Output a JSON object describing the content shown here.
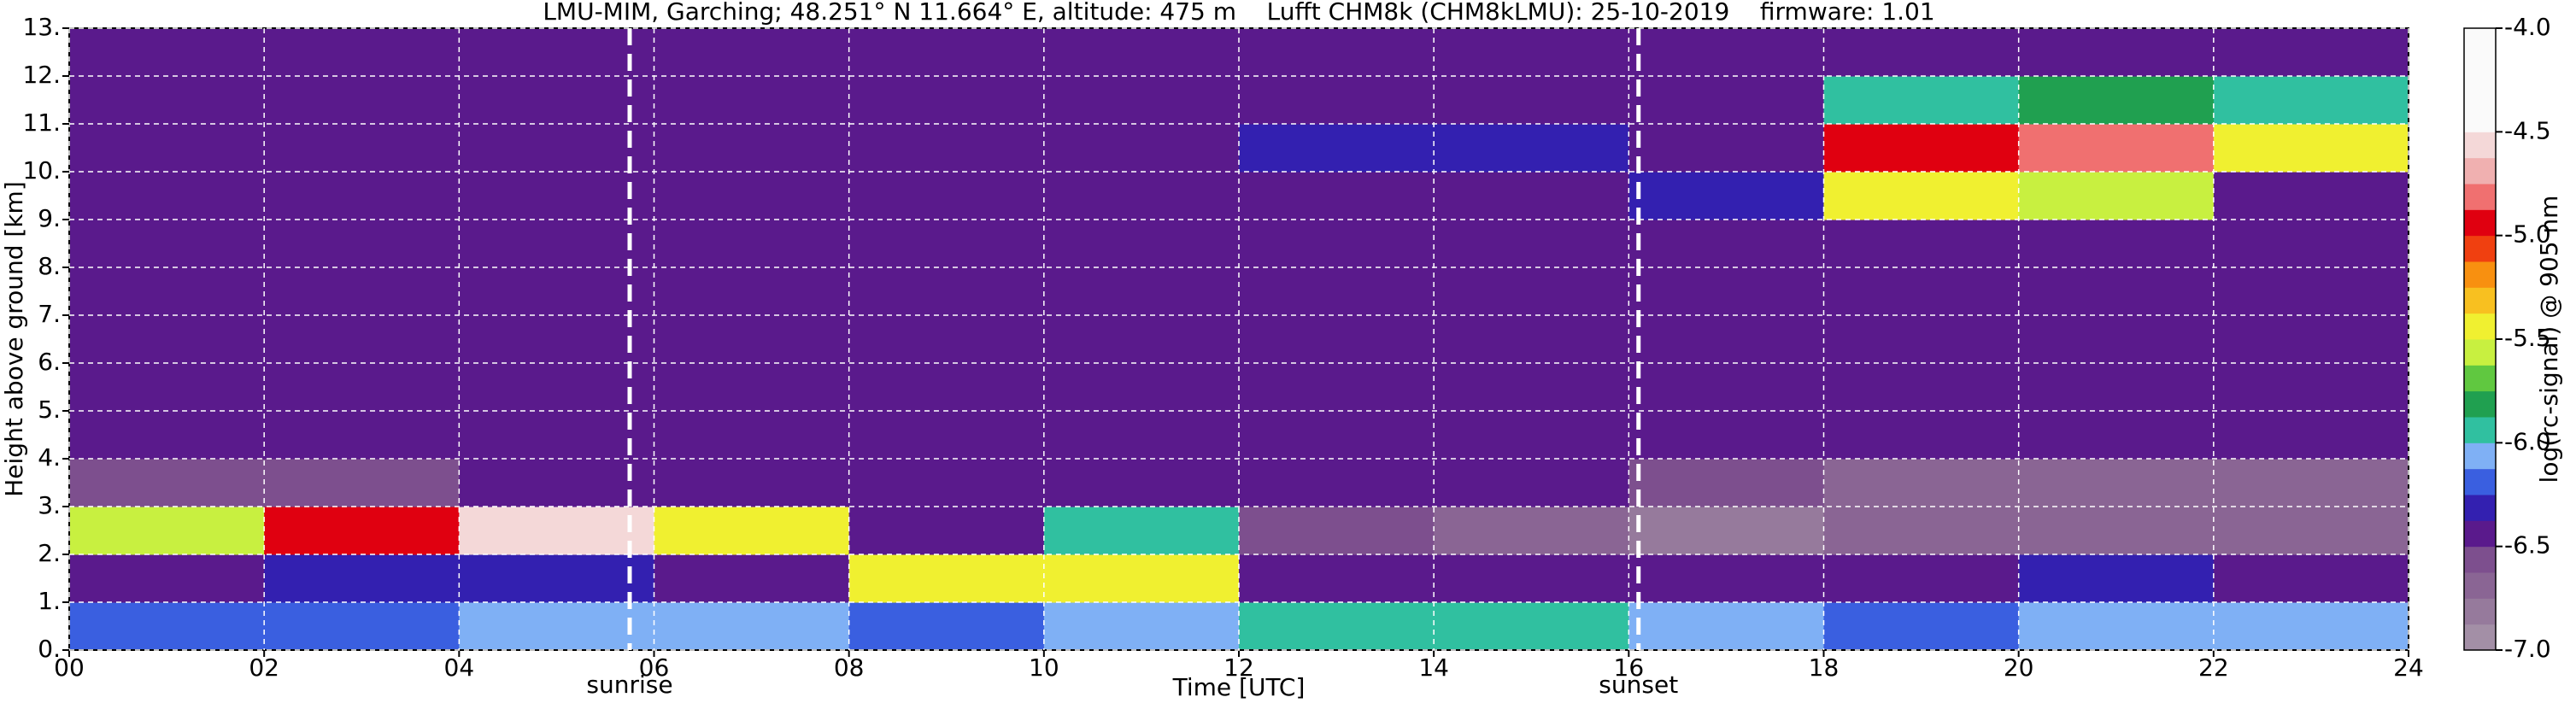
{
  "chart_data": {
    "type": "heatmap",
    "title": "LMU-MIM, Garching; 48.251° N 11.664° E, altitude: 475 m    Lufft CHM8k (CHM8kLMU): 25-10-2019    firmware: 1.01",
    "x_label": "Time [UTC]",
    "y_label": "Height above ground [km]",
    "colorbar_label": "log(rc-signal) @ 905 nm",
    "x_edges": [
      0,
      2,
      4,
      6,
      8,
      10,
      12,
      14,
      16,
      18,
      20,
      22,
      24
    ],
    "y_edges": [
      0,
      1,
      2,
      3,
      4,
      5,
      6,
      7,
      8,
      9,
      10,
      11,
      12,
      13
    ],
    "z": [
      [
        -6.2,
        -6.2,
        -6.1,
        -6.1,
        -6.2,
        -6.1,
        -6.0,
        -6.0,
        -6.1,
        -6.2,
        -6.1,
        -6.1
      ],
      [
        -6.5,
        -6.3,
        -6.3,
        -6.4,
        -5.4,
        -5.5,
        -6.4,
        -6.5,
        -6.4,
        -6.5,
        -6.3,
        -6.4
      ],
      [
        -5.6,
        -5.0,
        -4.6,
        -5.4,
        -6.5,
        -5.9,
        -6.6,
        -6.7,
        -6.8,
        -6.7,
        -6.7,
        -6.7
      ],
      [
        -6.6,
        -6.6,
        -6.5,
        -6.4,
        -6.5,
        -6.5,
        -6.5,
        -6.5,
        -6.6,
        -6.7,
        -6.7,
        -6.7
      ],
      [
        -6.5,
        -6.5,
        -6.5,
        -6.5,
        -6.5,
        -6.5,
        -6.5,
        -6.5,
        -6.5,
        -6.5,
        -6.5,
        -6.5
      ],
      [
        -6.5,
        -6.5,
        -6.5,
        -6.5,
        -6.5,
        -6.5,
        -6.5,
        -6.5,
        -6.5,
        -6.5,
        -6.5,
        -6.5
      ],
      [
        -6.5,
        -6.5,
        -6.5,
        -6.5,
        -6.5,
        -6.5,
        -6.5,
        -6.5,
        -6.5,
        -6.5,
        -6.5,
        -6.5
      ],
      [
        -6.5,
        -6.5,
        -6.5,
        -6.5,
        -6.5,
        -6.5,
        -6.5,
        -6.5,
        -6.5,
        -6.5,
        -6.5,
        -6.5
      ],
      [
        -6.5,
        -6.5,
        -6.5,
        -6.5,
        -6.4,
        -6.4,
        -6.4,
        -6.5,
        -6.5,
        -6.5,
        -6.5,
        -6.5
      ],
      [
        -6.5,
        -6.5,
        -6.5,
        -6.4,
        -6.4,
        -6.4,
        -6.4,
        -6.4,
        -6.3,
        -5.4,
        -5.6,
        -6.5
      ],
      [
        -6.5,
        -6.5,
        -6.5,
        -6.4,
        -6.4,
        -6.4,
        -6.3,
        -6.3,
        -6.4,
        -5.0,
        -4.8,
        -5.5
      ],
      [
        -6.5,
        -6.5,
        -6.5,
        -6.4,
        -6.4,
        -6.4,
        -6.4,
        -6.4,
        -6.5,
        -6.0,
        -5.8,
        -5.9
      ],
      [
        -6.5,
        -6.5,
        -6.5,
        -6.5,
        -6.4,
        -6.4,
        -6.4,
        -6.5,
        -6.5,
        -6.5,
        -6.5,
        -6.5
      ]
    ],
    "zlim": [
      -7.0,
      -4.0
    ],
    "colors": [
      "#a38fa6",
      "#967a9c",
      "#8a6594",
      "#7d4f8e",
      "#5a1a8c",
      "#3320b0",
      "#3a5fe0",
      "#7fb0f5",
      "#30c0a0",
      "#20a050",
      "#60c840",
      "#c8f040",
      "#f0f030",
      "#f8c020",
      "#f89010",
      "#f04010",
      "#e00010",
      "#f07070",
      "#f0b0b0",
      "#f4d8d8",
      "#fafafa",
      "#fafafa",
      "#fafafa",
      "#fafafa"
    ],
    "xlim": [
      0,
      24
    ],
    "ylim": [
      0,
      13
    ],
    "xticks": [
      {
        "value": 0,
        "label": "00"
      },
      {
        "value": 2,
        "label": "02"
      },
      {
        "value": 4,
        "label": "04"
      },
      {
        "value": 6,
        "label": "06"
      },
      {
        "value": 8,
        "label": "08"
      },
      10,
      12,
      14,
      16,
      18,
      20,
      22,
      24
    ],
    "yticks": [
      {
        "value": 0,
        "label": "0."
      },
      {
        "value": 1,
        "label": "1."
      },
      {
        "value": 2,
        "label": "2."
      },
      {
        "value": 3,
        "label": "3."
      },
      {
        "value": 4,
        "label": "4."
      },
      {
        "value": 5,
        "label": "5."
      },
      {
        "value": 6,
        "label": "6."
      },
      {
        "value": 7,
        "label": "7."
      },
      {
        "value": 8,
        "label": "8."
      },
      {
        "value": 9,
        "label": "9."
      },
      {
        "value": 10,
        "label": "10."
      },
      {
        "value": 11,
        "label": "11."
      },
      {
        "value": 12,
        "label": "12."
      },
      {
        "value": 13,
        "label": "13."
      }
    ],
    "colorbar_ticks": [
      {
        "value": -4.0,
        "label": "-4.0"
      },
      {
        "value": -4.5,
        "label": "-4.5"
      },
      {
        "value": -5.0,
        "label": "-5.0"
      },
      {
        "value": -5.5,
        "label": "-5.5"
      },
      {
        "value": -6.0,
        "label": "-6.0"
      },
      {
        "value": -6.5,
        "label": "-6.5"
      },
      {
        "value": -7.0,
        "label": "-7.0"
      }
    ],
    "grid": true,
    "annotations": [
      {
        "text": "sunrise",
        "x": 5.75
      },
      {
        "text": "sunset",
        "x": 16.1
      }
    ]
  }
}
